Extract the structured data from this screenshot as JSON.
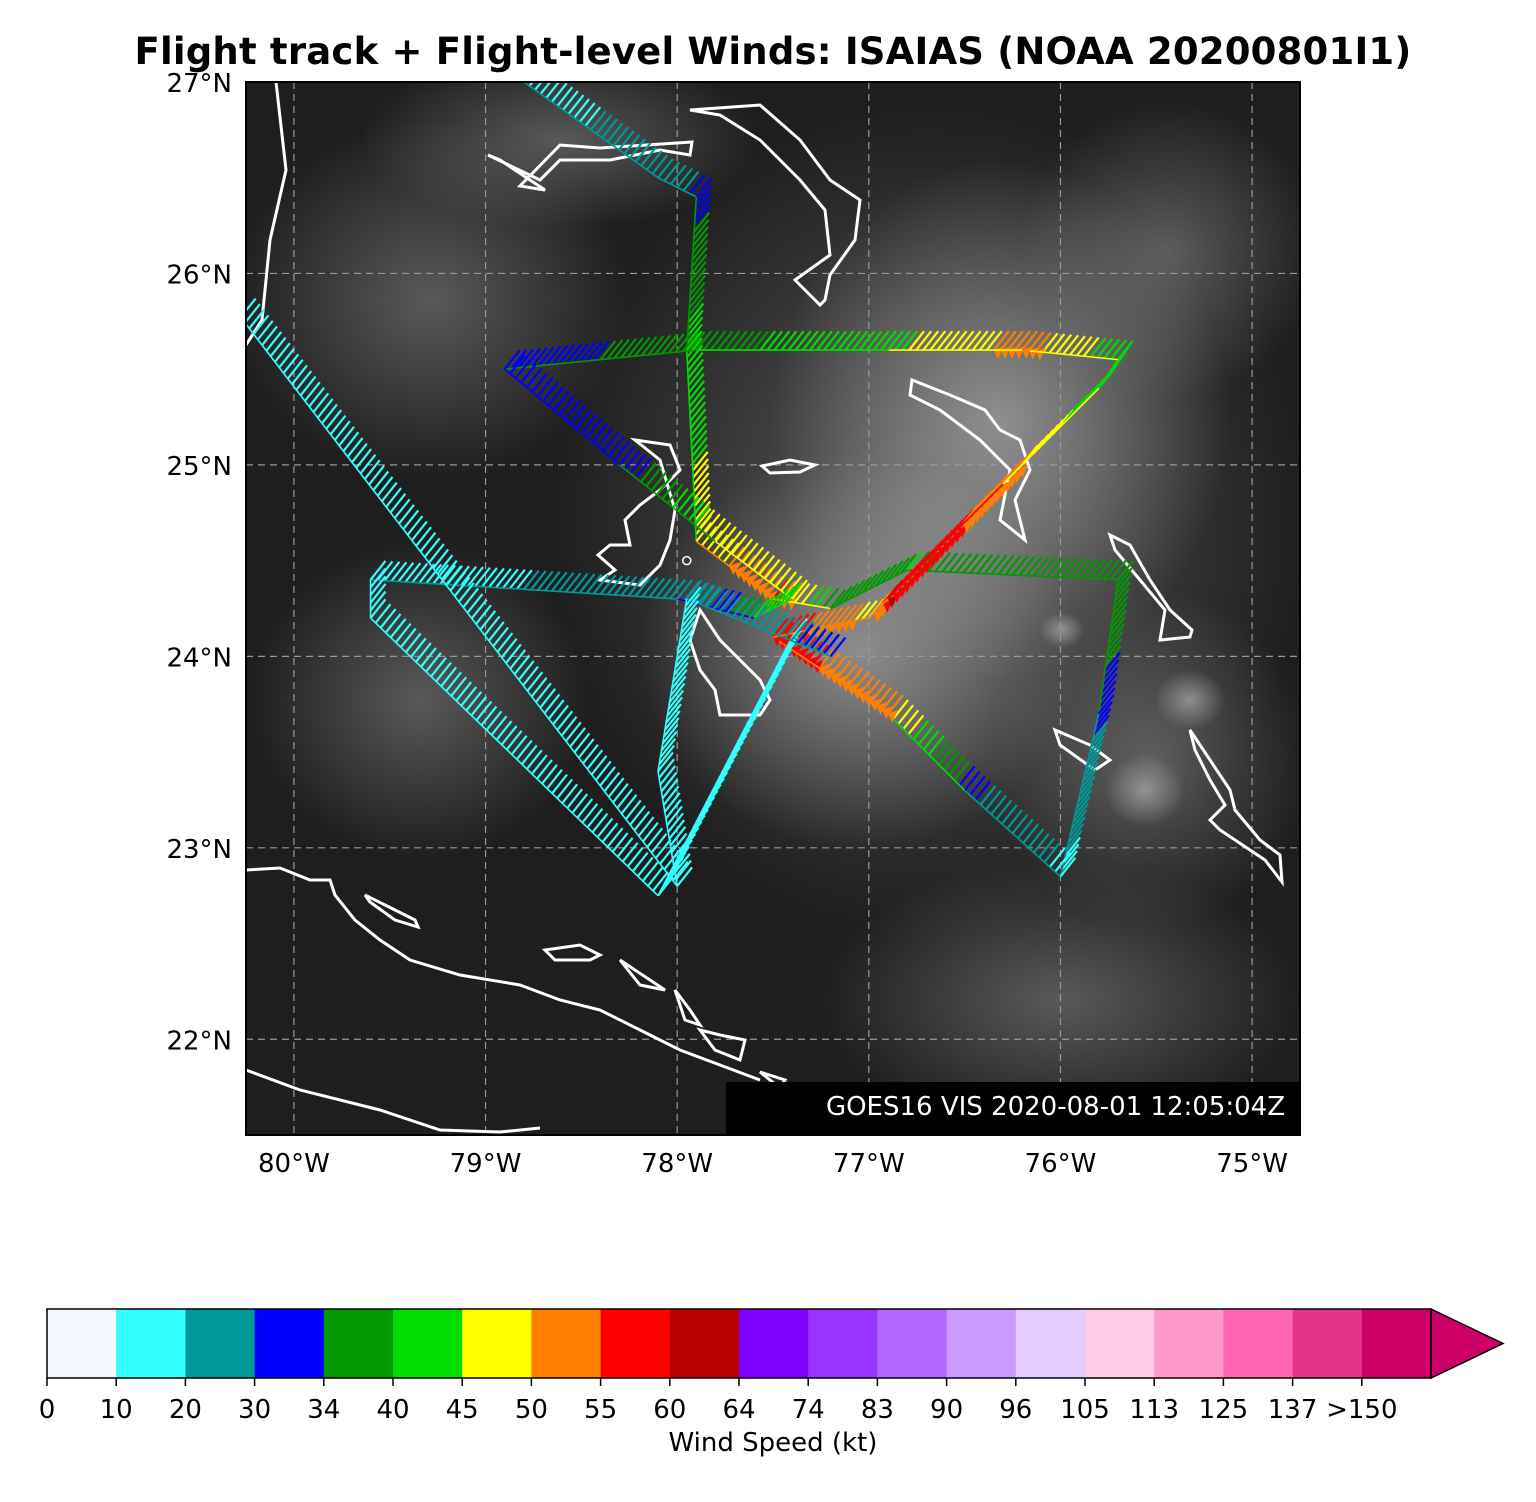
{
  "title": "Flight track + Flight-level Winds: ISAIAS (NOAA 20200801I1)",
  "map": {
    "lon_range": [
      -80.25,
      -74.75
    ],
    "lat_range": [
      21.5,
      27.0
    ],
    "lat_ticks": [
      {
        "value": 27,
        "label": "27°N"
      },
      {
        "value": 26,
        "label": "26°N"
      },
      {
        "value": 25,
        "label": "25°N"
      },
      {
        "value": 24,
        "label": "24°N"
      },
      {
        "value": 23,
        "label": "23°N"
      },
      {
        "value": 22,
        "label": "22°N"
      }
    ],
    "lon_ticks": [
      {
        "value": -80,
        "label": "80°W"
      },
      {
        "value": -79,
        "label": "79°W"
      },
      {
        "value": -78,
        "label": "78°W"
      },
      {
        "value": -77,
        "label": "77°W"
      },
      {
        "value": -76,
        "label": "76°W"
      },
      {
        "value": -75,
        "label": "75°W"
      }
    ],
    "gridlines": true,
    "background": "satellite visible imagery",
    "coastline_color": "#ffffff",
    "image_stamp": "GOES16 VIS 2020-08-01 12:05:04Z",
    "flight_track": [
      {
        "lon": -78.8,
        "lat": 27.0,
        "kt": 15
      },
      {
        "lon": -78.1,
        "lat": 26.5,
        "kt": 25
      },
      {
        "lon": -77.9,
        "lat": 26.4,
        "kt": 32
      },
      {
        "lon": -77.95,
        "lat": 25.6,
        "kt": 42
      },
      {
        "lon": -77.9,
        "lat": 24.6,
        "kt": 47
      },
      {
        "lon": -77.5,
        "lat": 24.3,
        "kt": 55
      },
      {
        "lon": -77.2,
        "lat": 24.25,
        "kt": 35
      },
      {
        "lon": -76.8,
        "lat": 24.45,
        "kt": 40
      },
      {
        "lon": -75.7,
        "lat": 24.4,
        "kt": 38
      },
      {
        "lon": -75.8,
        "lat": 23.7,
        "kt": 32
      },
      {
        "lon": -76.0,
        "lat": 22.85,
        "kt": 18
      },
      {
        "lon": -76.5,
        "lat": 23.3,
        "kt": 32
      },
      {
        "lon": -76.9,
        "lat": 23.7,
        "kt": 50
      },
      {
        "lon": -77.5,
        "lat": 24.1,
        "kt": 58
      },
      {
        "lon": -77.0,
        "lat": 24.2,
        "kt": 48
      },
      {
        "lon": -76.9,
        "lat": 24.3,
        "kt": 60
      },
      {
        "lon": -76.3,
        "lat": 24.9,
        "kt": 52
      },
      {
        "lon": -75.8,
        "lat": 25.4,
        "kt": 40
      },
      {
        "lon": -75.7,
        "lat": 25.55,
        "kt": 42
      },
      {
        "lon": -76.2,
        "lat": 25.6,
        "kt": 52
      },
      {
        "lon": -76.9,
        "lat": 25.6,
        "kt": 44
      },
      {
        "lon": -77.9,
        "lat": 25.6,
        "kt": 38
      },
      {
        "lon": -78.9,
        "lat": 25.5,
        "kt": 30
      },
      {
        "lon": -78.3,
        "lat": 25.0,
        "kt": 30
      },
      {
        "lon": -77.8,
        "lat": 24.6,
        "kt": 48
      },
      {
        "lon": -77.4,
        "lat": 24.3,
        "kt": 45
      },
      {
        "lon": -77.6,
        "lat": 24.2,
        "kt": 40
      },
      {
        "lon": -78.0,
        "lat": 24.3,
        "kt": 22
      },
      {
        "lon": -79.6,
        "lat": 24.4,
        "kt": 18
      },
      {
        "lon": -79.6,
        "lat": 24.2,
        "kt": 17
      },
      {
        "lon": -78.1,
        "lat": 22.75,
        "kt": 16
      },
      {
        "lon": -77.4,
        "lat": 24.1,
        "kt": 18
      },
      {
        "lon": -77.2,
        "lat": 24.0,
        "kt": 33
      },
      {
        "lon": -77.95,
        "lat": 24.3,
        "kt": 20
      },
      {
        "lon": -78.1,
        "lat": 23.4,
        "kt": 17
      },
      {
        "lon": -78.0,
        "lat": 22.8,
        "kt": 16
      },
      {
        "lon": -80.3,
        "lat": 25.8,
        "kt": 14
      }
    ],
    "markers": [
      {
        "name": "storm-center",
        "lon": -77.95,
        "lat": 24.5
      }
    ]
  },
  "colorbar": {
    "label": "Wind Speed (kt)",
    "boundaries": [
      "0",
      "10",
      "20",
      "30",
      "34",
      "40",
      "45",
      "50",
      "55",
      "60",
      "64",
      "74",
      "83",
      "90",
      "96",
      "105",
      "113",
      "125",
      "137",
      ">150"
    ],
    "colors": [
      "#f5f7ff",
      "#33ffff",
      "#009999",
      "#0000ff",
      "#009900",
      "#00dd00",
      "#ffff00",
      "#ff8000",
      "#ff0000",
      "#bb0000",
      "#8000ff",
      "#9933ff",
      "#b266ff",
      "#cc99ff",
      "#e5ccff",
      "#ffcce5",
      "#ff99cc",
      "#ff66b2",
      "#e5338c",
      "#cc0066"
    ],
    "extend": "max",
    "extend_color": "#cc0066"
  }
}
